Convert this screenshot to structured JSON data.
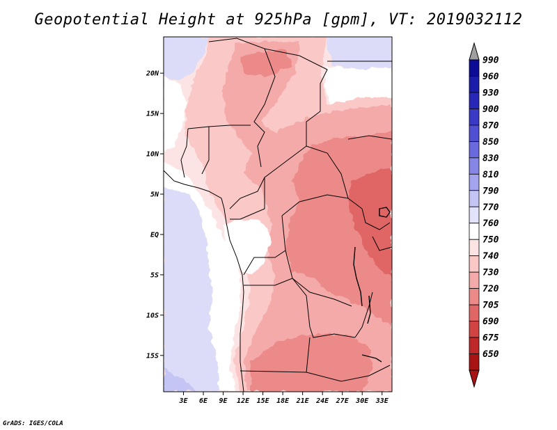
{
  "title": "Geopotential Height at 925hPa [gpm], VT: 2019032112",
  "footer": "GrADS: IGES/COLA",
  "map": {
    "lon_range": [
      0,
      34.5
    ],
    "lat_range": [
      -19.5,
      24.5
    ],
    "lat_ticks": [
      {
        "value": 20,
        "label": "20N"
      },
      {
        "value": 15,
        "label": "15N"
      },
      {
        "value": 10,
        "label": "10N"
      },
      {
        "value": 5,
        "label": "5N"
      },
      {
        "value": 0,
        "label": "EQ"
      },
      {
        "value": -5,
        "label": "5S"
      },
      {
        "value": -10,
        "label": "10S"
      },
      {
        "value": -15,
        "label": "15S"
      }
    ],
    "lon_ticks": [
      {
        "value": 3,
        "label": "3E"
      },
      {
        "value": 6,
        "label": "6E"
      },
      {
        "value": 9,
        "label": "9E"
      },
      {
        "value": 12,
        "label": "12E"
      },
      {
        "value": 15,
        "label": "15E"
      },
      {
        "value": 18,
        "label": "18E"
      },
      {
        "value": 21,
        "label": "21E"
      },
      {
        "value": 24,
        "label": "24E"
      },
      {
        "value": 27,
        "label": "27E"
      },
      {
        "value": 30,
        "label": "30E"
      },
      {
        "value": 33,
        "label": "33E"
      }
    ]
  },
  "colorbar": {
    "levels": [
      {
        "label": "990",
        "color": "#0c0c96"
      },
      {
        "label": "960",
        "color": "#1c1caa"
      },
      {
        "label": "930",
        "color": "#2828b8"
      },
      {
        "label": "900",
        "color": "#3a3ac6"
      },
      {
        "label": "870",
        "color": "#5050d2"
      },
      {
        "label": "850",
        "color": "#6a6ade"
      },
      {
        "label": "830",
        "color": "#8686e6"
      },
      {
        "label": "810",
        "color": "#a4a4ee"
      },
      {
        "label": "790",
        "color": "#c4c4f5"
      },
      {
        "label": "770",
        "color": "#e2e2fb"
      },
      {
        "label": "760",
        "color": "#ffffff"
      },
      {
        "label": "750",
        "color": "#fde4e4"
      },
      {
        "label": "740",
        "color": "#fbc8c8"
      },
      {
        "label": "730",
        "color": "#f5aaaa"
      },
      {
        "label": "720",
        "color": "#ec8a8a"
      },
      {
        "label": "705",
        "color": "#e06666"
      },
      {
        "label": "690",
        "color": "#d24444"
      },
      {
        "label": "675",
        "color": "#be2828"
      },
      {
        "label": "650",
        "color": "#a81414"
      }
    ],
    "top_arrow_color": "#a0a0a0",
    "bottom_arrow_color": "#a81414"
  }
}
